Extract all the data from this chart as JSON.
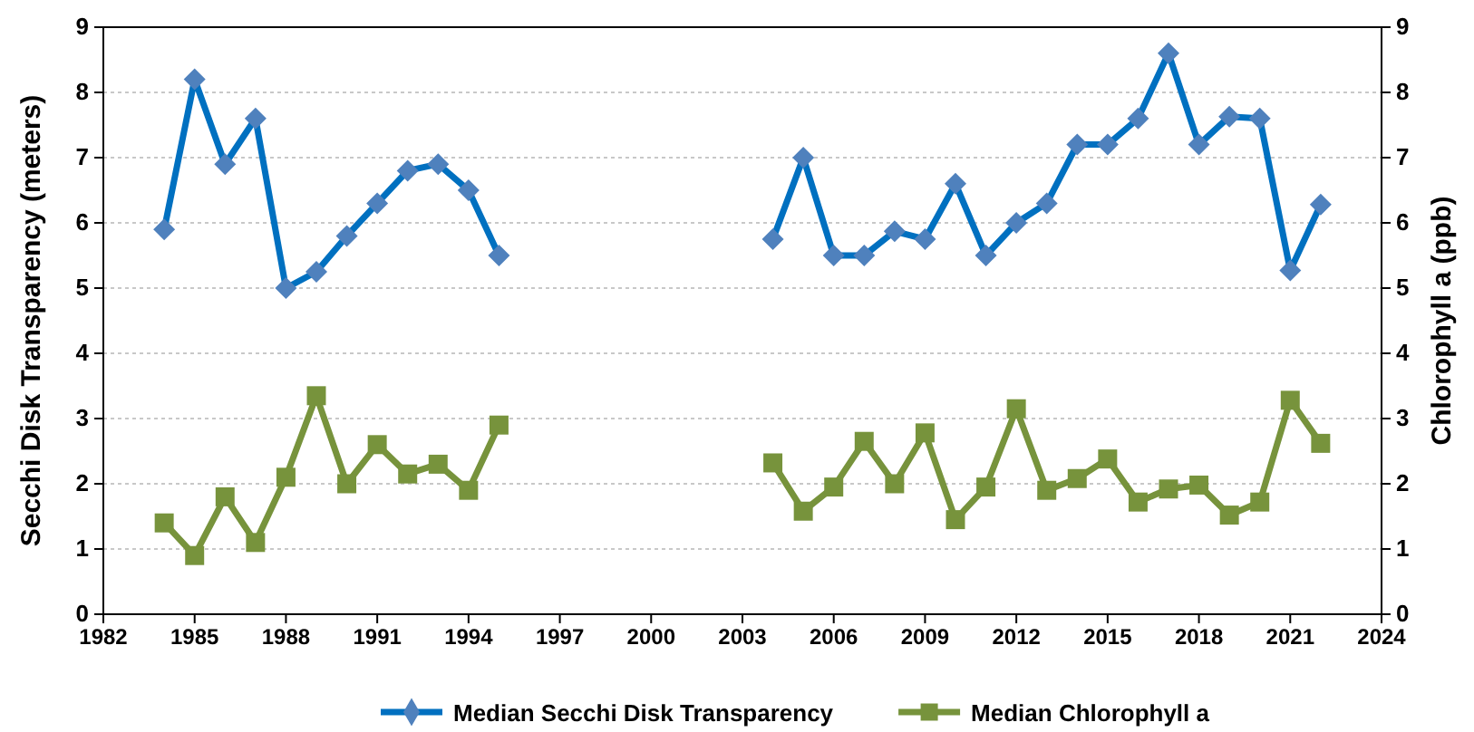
{
  "chart_data": {
    "type": "line",
    "x": [
      1984,
      1985,
      1986,
      1987,
      1988,
      1989,
      1990,
      1991,
      1992,
      1993,
      1994,
      1995,
      1996,
      1997,
      1998,
      1999,
      2000,
      2001,
      2002,
      2003,
      2004,
      2005,
      2006,
      2007,
      2008,
      2009,
      2010,
      2011,
      2012,
      2013,
      2014,
      2015,
      2016,
      2017,
      2018,
      2019,
      2020,
      2021,
      2022
    ],
    "series": [
      {
        "name": "Median Secchi Disk Transparency",
        "color": "#0070c0",
        "marker": "diamond",
        "values": [
          5.9,
          8.2,
          6.9,
          7.6,
          5.0,
          5.25,
          5.8,
          6.3,
          6.8,
          6.9,
          6.5,
          5.5,
          null,
          null,
          null,
          null,
          null,
          null,
          null,
          null,
          5.75,
          7.0,
          5.5,
          5.5,
          5.87,
          5.75,
          6.6,
          5.5,
          6.0,
          6.3,
          7.2,
          7.2,
          7.6,
          8.6,
          7.2,
          7.63,
          7.6,
          5.27,
          6.28
        ]
      },
      {
        "name": "Median Chlorophyll a",
        "color": "#77933c",
        "marker": "square",
        "axis": "y2",
        "values": [
          1.4,
          0.9,
          1.8,
          1.1,
          2.1,
          3.35,
          2.0,
          2.6,
          2.15,
          2.3,
          1.9,
          2.9,
          null,
          null,
          null,
          null,
          null,
          null,
          null,
          null,
          2.32,
          1.58,
          1.95,
          2.65,
          2.0,
          2.78,
          1.45,
          1.95,
          3.15,
          1.9,
          2.08,
          2.38,
          1.72,
          1.92,
          1.98,
          1.52,
          1.72,
          3.28,
          2.62
        ]
      }
    ],
    "xlim": [
      1982,
      2024
    ],
    "xticks": [
      1982,
      1985,
      1988,
      1991,
      1994,
      1997,
      2000,
      2003,
      2006,
      2009,
      2012,
      2015,
      2018,
      2021,
      2024
    ],
    "ylim": [
      0,
      9
    ],
    "yticks": [
      0,
      1,
      2,
      3,
      4,
      5,
      6,
      7,
      8,
      9
    ],
    "y2lim": [
      0,
      9
    ],
    "y2ticks": [
      0,
      1,
      2,
      3,
      4,
      5,
      6,
      7,
      8,
      9
    ],
    "ylabel": "Secchi Disk Transparency (meters)",
    "y2label": "Chlorophyll a (ppb)",
    "grid": "y",
    "legend": "bottom",
    "line_style": "solid"
  }
}
